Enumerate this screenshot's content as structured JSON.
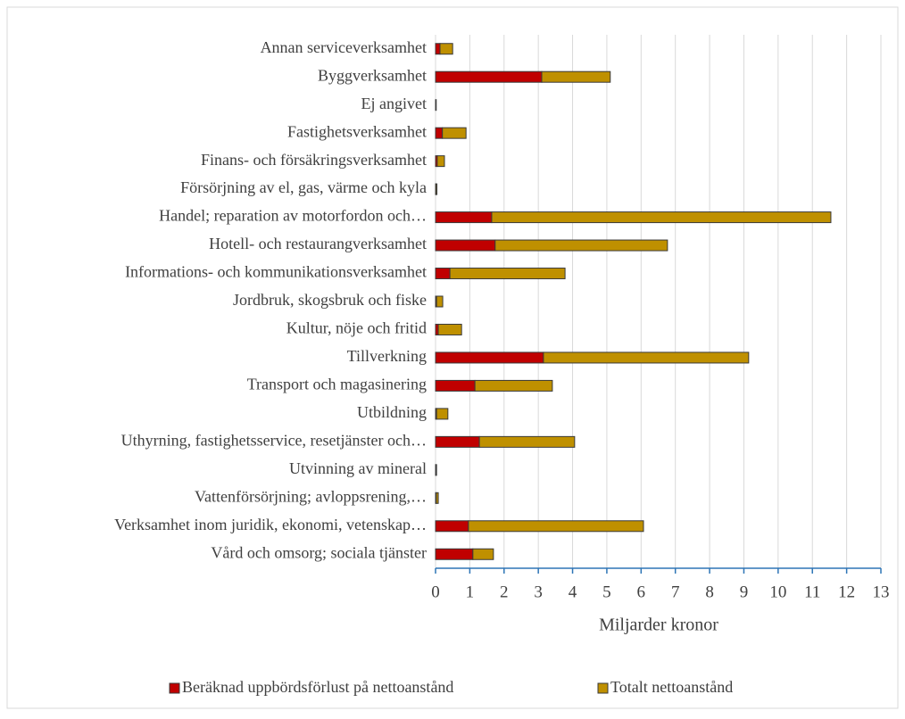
{
  "chart_data": {
    "type": "stacked-barh",
    "xlabel": "Miljarder kronor",
    "categories": [
      "Annan serviceverksamhet",
      "Byggverksamhet",
      "Ej angivet",
      "Fastighetsverksamhet",
      "Finans- och försäkringsverksamhet",
      "Försörjning av el, gas, värme och kyla",
      "Handel; reparation av motorfordon och…",
      "Hotell- och restaurangverksamhet",
      "Informations- och kommunikationsverksamhet",
      "Jordbruk, skogsbruk och fiske",
      "Kultur, nöje och fritid",
      "Tillverkning",
      "Transport och magasinering",
      "Utbildning",
      "Uthyrning, fastighetsservice, resetjänster och…",
      "Utvinning av mineral",
      "Vattenförsörjning; avloppsrening,…",
      "Verksamhet inom juridik, ekonomi, vetenskap…",
      "Vård och omsorg; sociala tjänster"
    ],
    "series": [
      {
        "name": "Beräknad uppbördsförlust på nettoanstånd",
        "color": "#c00000",
        "values": [
          0.13,
          3.1,
          0.0,
          0.2,
          0.05,
          0.01,
          1.64,
          1.74,
          0.42,
          0.03,
          0.08,
          3.15,
          1.15,
          0.03,
          1.28,
          0.01,
          0.02,
          0.96,
          1.09
        ]
      },
      {
        "name": "Totalt nettoanstånd",
        "color": "#bf9000",
        "values": [
          0.37,
          2.0,
          0.02,
          0.69,
          0.21,
          0.03,
          9.9,
          5.03,
          3.36,
          0.18,
          0.68,
          5.99,
          2.26,
          0.33,
          2.78,
          0.02,
          0.06,
          5.11,
          0.6
        ]
      }
    ],
    "xlim": [
      0,
      13
    ],
    "xticks": [
      0,
      1,
      2,
      3,
      4,
      5,
      6,
      7,
      8,
      9,
      10,
      11,
      12,
      13
    ],
    "grid": true,
    "legend": "bottom"
  }
}
